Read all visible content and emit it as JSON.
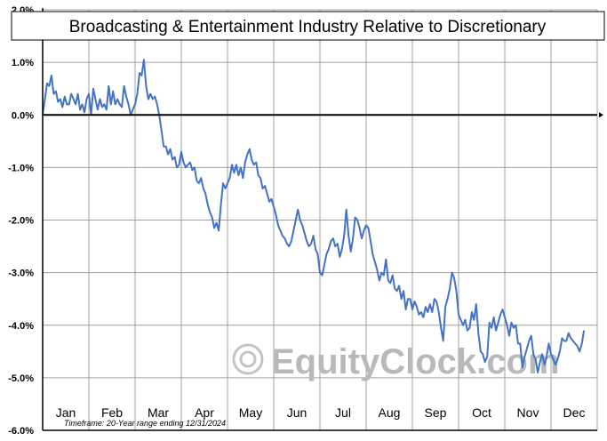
{
  "chart_data": {
    "type": "line",
    "title": "Broadcasting & Entertainment Industry Relative to Discretionary",
    "xlabel": "",
    "ylabel": "",
    "ylim": [
      -6.0,
      2.0
    ],
    "y_ticks": [
      2.0,
      1.0,
      0.0,
      -1.0,
      -2.0,
      -3.0,
      -4.0,
      -5.0,
      -6.0
    ],
    "y_tick_labels": [
      "2.0%",
      "1.0%",
      "0.0%",
      "-1.0%",
      "-2.0%",
      "-3.0%",
      "-4.0%",
      "-5.0%",
      "-6.0%"
    ],
    "months": [
      "Jan",
      "Feb",
      "Mar",
      "Apr",
      "May",
      "Jun",
      "Jul",
      "Aug",
      "Sep",
      "Oct",
      "Nov",
      "Dec"
    ],
    "x_unit": "trading day of year",
    "x_range": [
      0,
      252
    ],
    "grid": true,
    "footnote": "Timeframe: 20-Year range ending 12/31/2024",
    "watermark": "EquityClock.com",
    "line_color": "#4472c4",
    "series": [
      {
        "values": [
          [
            0,
            0.0
          ],
          [
            1,
            0.3
          ],
          [
            2,
            0.6
          ],
          [
            3,
            0.55
          ],
          [
            4,
            0.75
          ],
          [
            5,
            0.4
          ],
          [
            6,
            0.45
          ],
          [
            7,
            0.25
          ],
          [
            8,
            0.3
          ],
          [
            9,
            0.15
          ],
          [
            10,
            0.35
          ],
          [
            11,
            0.2
          ],
          [
            12,
            0.2
          ],
          [
            13,
            0.4
          ],
          [
            14,
            0.3
          ],
          [
            15,
            0.2
          ],
          [
            16,
            0.4
          ],
          [
            17,
            0.1
          ],
          [
            18,
            0.2
          ],
          [
            19,
            0.05
          ],
          [
            20,
            0.3
          ],
          [
            21,
            0.4
          ],
          [
            22,
            0.0
          ],
          [
            23,
            0.5
          ],
          [
            24,
            0.3
          ],
          [
            25,
            0.1
          ],
          [
            26,
            0.3
          ],
          [
            27,
            0.15
          ],
          [
            28,
            0.2
          ],
          [
            29,
            0.1
          ],
          [
            30,
            0.55
          ],
          [
            31,
            0.2
          ],
          [
            32,
            0.45
          ],
          [
            33,
            0.2
          ],
          [
            34,
            0.3
          ],
          [
            35,
            0.2
          ],
          [
            36,
            0.15
          ],
          [
            37,
            0.55
          ],
          [
            38,
            0.35
          ],
          [
            39,
            0.2
          ],
          [
            40,
            0.0
          ],
          [
            41,
            0.1
          ],
          [
            42,
            0.2
          ],
          [
            43,
            0.4
          ],
          [
            44,
            0.8
          ],
          [
            45,
            0.75
          ],
          [
            46,
            1.05
          ],
          [
            47,
            0.55
          ],
          [
            48,
            0.3
          ],
          [
            49,
            0.4
          ],
          [
            50,
            0.3
          ],
          [
            51,
            0.35
          ],
          [
            52,
            0.2
          ],
          [
            53,
            0.0
          ],
          [
            54,
            -0.3
          ],
          [
            55,
            -0.6
          ],
          [
            56,
            -0.6
          ],
          [
            57,
            -0.75
          ],
          [
            58,
            -0.65
          ],
          [
            59,
            -0.85
          ],
          [
            60,
            -0.8
          ],
          [
            61,
            -1.0
          ],
          [
            62,
            -0.95
          ],
          [
            63,
            -0.7
          ],
          [
            64,
            -0.9
          ],
          [
            65,
            -1.0
          ],
          [
            66,
            -0.95
          ],
          [
            67,
            -0.9
          ],
          [
            68,
            -1.05
          ],
          [
            69,
            -1.0
          ],
          [
            70,
            -1.25
          ],
          [
            71,
            -1.3
          ],
          [
            72,
            -1.2
          ],
          [
            73,
            -1.4
          ],
          [
            74,
            -1.5
          ],
          [
            75,
            -1.7
          ],
          [
            76,
            -1.85
          ],
          [
            77,
            -1.95
          ],
          [
            78,
            -2.15
          ],
          [
            79,
            -2.05
          ],
          [
            80,
            -2.2
          ],
          [
            81,
            -1.7
          ],
          [
            82,
            -1.3
          ],
          [
            83,
            -1.4
          ],
          [
            84,
            -1.3
          ],
          [
            85,
            -1.2
          ],
          [
            86,
            -0.95
          ],
          [
            87,
            -1.1
          ],
          [
            88,
            -0.95
          ],
          [
            89,
            -1.15
          ],
          [
            90,
            -1.0
          ],
          [
            91,
            -1.2
          ],
          [
            92,
            -0.9
          ],
          [
            93,
            -0.75
          ],
          [
            94,
            -0.65
          ],
          [
            95,
            -0.85
          ],
          [
            96,
            -0.95
          ],
          [
            97,
            -0.9
          ],
          [
            98,
            -1.15
          ],
          [
            99,
            -1.2
          ],
          [
            100,
            -1.4
          ],
          [
            101,
            -1.35
          ],
          [
            102,
            -1.5
          ],
          [
            103,
            -1.65
          ],
          [
            104,
            -1.6
          ],
          [
            105,
            -1.75
          ],
          [
            106,
            -1.9
          ],
          [
            107,
            -2.1
          ],
          [
            108,
            -2.2
          ],
          [
            109,
            -2.3
          ],
          [
            110,
            -2.35
          ],
          [
            111,
            -2.45
          ],
          [
            112,
            -2.5
          ],
          [
            113,
            -2.4
          ],
          [
            114,
            -2.2
          ],
          [
            115,
            -2.0
          ],
          [
            116,
            -1.8
          ],
          [
            117,
            -2.0
          ],
          [
            118,
            -2.1
          ],
          [
            119,
            -2.25
          ],
          [
            120,
            -2.4
          ],
          [
            121,
            -2.5
          ],
          [
            122,
            -2.45
          ],
          [
            123,
            -2.3
          ],
          [
            124,
            -2.55
          ],
          [
            125,
            -2.65
          ],
          [
            126,
            -3.0
          ],
          [
            127,
            -3.05
          ],
          [
            128,
            -2.85
          ],
          [
            129,
            -2.65
          ],
          [
            130,
            -2.55
          ],
          [
            131,
            -2.4
          ],
          [
            132,
            -2.35
          ],
          [
            133,
            -2.5
          ],
          [
            134,
            -2.45
          ],
          [
            135,
            -2.7
          ],
          [
            136,
            -2.55
          ],
          [
            137,
            -2.3
          ],
          [
            138,
            -1.8
          ],
          [
            139,
            -2.3
          ],
          [
            140,
            -2.6
          ],
          [
            141,
            -2.35
          ],
          [
            142,
            -1.95
          ],
          [
            143,
            -2.0
          ],
          [
            144,
            -2.15
          ],
          [
            145,
            -2.35
          ],
          [
            146,
            -2.2
          ],
          [
            147,
            -2.1
          ],
          [
            148,
            -2.15
          ],
          [
            149,
            -2.4
          ],
          [
            150,
            -2.65
          ],
          [
            151,
            -2.8
          ],
          [
            152,
            -2.95
          ],
          [
            153,
            -3.15
          ],
          [
            154,
            -3.0
          ],
          [
            155,
            -3.05
          ],
          [
            156,
            -2.75
          ],
          [
            157,
            -3.15
          ],
          [
            158,
            -3.2
          ],
          [
            159,
            -3.05
          ],
          [
            160,
            -3.3
          ],
          [
            161,
            -3.35
          ],
          [
            162,
            -3.25
          ],
          [
            163,
            -3.5
          ],
          [
            164,
            -3.35
          ],
          [
            165,
            -3.7
          ],
          [
            166,
            -3.5
          ],
          [
            167,
            -3.5
          ],
          [
            168,
            -3.7
          ],
          [
            169,
            -3.55
          ],
          [
            170,
            -3.65
          ],
          [
            171,
            -3.8
          ],
          [
            172,
            -3.75
          ],
          [
            173,
            -3.85
          ],
          [
            174,
            -3.65
          ],
          [
            175,
            -3.75
          ],
          [
            176,
            -3.6
          ],
          [
            177,
            -3.75
          ],
          [
            178,
            -3.5
          ],
          [
            179,
            -3.55
          ],
          [
            180,
            -3.75
          ],
          [
            181,
            -4.05
          ],
          [
            182,
            -4.3
          ],
          [
            183,
            -3.65
          ],
          [
            184,
            -3.5
          ],
          [
            185,
            -3.3
          ],
          [
            186,
            -3.0
          ],
          [
            187,
            -3.1
          ],
          [
            188,
            -3.35
          ],
          [
            189,
            -3.8
          ],
          [
            190,
            -3.9
          ],
          [
            191,
            -4.0
          ],
          [
            192,
            -3.9
          ],
          [
            193,
            -4.1
          ],
          [
            194,
            -4.05
          ],
          [
            195,
            -3.75
          ],
          [
            196,
            -3.9
          ],
          [
            197,
            -3.6
          ],
          [
            198,
            -4.15
          ],
          [
            199,
            -4.5
          ],
          [
            200,
            -4.55
          ],
          [
            201,
            -4.7
          ],
          [
            202,
            -4.6
          ],
          [
            203,
            -3.95
          ],
          [
            204,
            -4.05
          ],
          [
            205,
            -3.85
          ],
          [
            206,
            -4.1
          ],
          [
            207,
            -3.95
          ],
          [
            208,
            -3.8
          ],
          [
            209,
            -3.7
          ],
          [
            210,
            -3.85
          ],
          [
            211,
            -4.0
          ],
          [
            212,
            -4.2
          ],
          [
            213,
            -3.95
          ],
          [
            214,
            -4.05
          ],
          [
            215,
            -4.0
          ],
          [
            216,
            -4.35
          ],
          [
            217,
            -4.35
          ],
          [
            218,
            -4.8
          ],
          [
            219,
            -4.6
          ],
          [
            220,
            -4.45
          ],
          [
            221,
            -4.3
          ],
          [
            222,
            -4.2
          ],
          [
            223,
            -4.55
          ],
          [
            224,
            -4.65
          ],
          [
            225,
            -4.9
          ],
          [
            226,
            -4.7
          ],
          [
            227,
            -4.55
          ],
          [
            228,
            -4.75
          ],
          [
            229,
            -4.6
          ],
          [
            230,
            -4.35
          ],
          [
            231,
            -4.55
          ],
          [
            232,
            -4.65
          ],
          [
            233,
            -4.75
          ],
          [
            234,
            -4.65
          ],
          [
            235,
            -4.5
          ],
          [
            236,
            -4.25
          ],
          [
            237,
            -4.3
          ],
          [
            238,
            -4.3
          ],
          [
            239,
            -4.15
          ],
          [
            240,
            -4.25
          ],
          [
            241,
            -4.3
          ],
          [
            242,
            -4.35
          ],
          [
            243,
            -4.4
          ],
          [
            244,
            -4.5
          ],
          [
            245,
            -4.35
          ],
          [
            246,
            -4.1
          ]
        ]
      }
    ]
  }
}
